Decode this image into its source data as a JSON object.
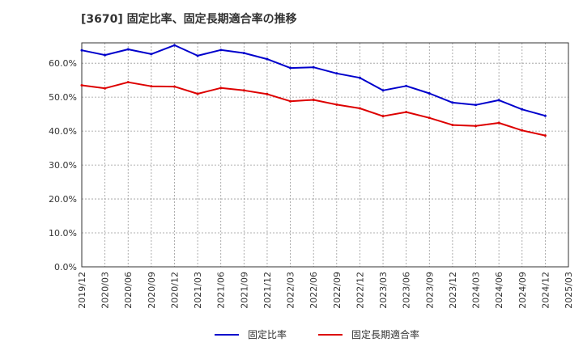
{
  "chart_data": {
    "type": "line",
    "title": "[3670]  固定比率、固定長期適合率の推移",
    "xlabel": "",
    "ylabel": "",
    "ylim": [
      0,
      0.66
    ],
    "grid": true,
    "legend_position": "bottom",
    "y_ticks": [
      {
        "value": 0.0,
        "label": "0.0%"
      },
      {
        "value": 0.1,
        "label": "10.0%"
      },
      {
        "value": 0.2,
        "label": "20.0%"
      },
      {
        "value": 0.3,
        "label": "30.0%"
      },
      {
        "value": 0.4,
        "label": "40.0%"
      },
      {
        "value": 0.5,
        "label": "50.0%"
      },
      {
        "value": 0.6,
        "label": "60.0%"
      }
    ],
    "x_ticks": [
      "2019/12",
      "2020/03",
      "2020/06",
      "2020/09",
      "2020/12",
      "2021/03",
      "2021/06",
      "2021/09",
      "2021/12",
      "2022/03",
      "2022/06",
      "2022/09",
      "2022/12",
      "2023/03",
      "2023/06",
      "2023/09",
      "2023/12",
      "2024/03",
      "2024/06",
      "2024/09",
      "2024/12",
      "2025/03"
    ],
    "x": [
      "2019/12",
      "2020/03",
      "2020/06",
      "2020/09",
      "2020/12",
      "2021/03",
      "2021/06",
      "2021/09",
      "2021/12",
      "2022/03",
      "2022/06",
      "2022/09",
      "2022/12",
      "2023/03",
      "2023/06",
      "2023/09",
      "2023/12",
      "2024/03",
      "2024/06",
      "2024/09",
      "2024/12"
    ],
    "series": [
      {
        "name": "固定比率",
        "color": "#0000cc",
        "values": [
          0.638,
          0.624,
          0.641,
          0.627,
          0.653,
          0.622,
          0.639,
          0.63,
          0.612,
          0.586,
          0.588,
          0.57,
          0.557,
          0.52,
          0.533,
          0.511,
          0.484,
          0.477,
          0.491,
          0.464,
          0.445
        ]
      },
      {
        "name": "固定長期適合率",
        "color": "#dd0000",
        "values": [
          0.535,
          0.526,
          0.544,
          0.532,
          0.531,
          0.51,
          0.527,
          0.52,
          0.509,
          0.488,
          0.492,
          0.478,
          0.467,
          0.444,
          0.456,
          0.439,
          0.418,
          0.415,
          0.424,
          0.402,
          0.387
        ]
      }
    ]
  }
}
